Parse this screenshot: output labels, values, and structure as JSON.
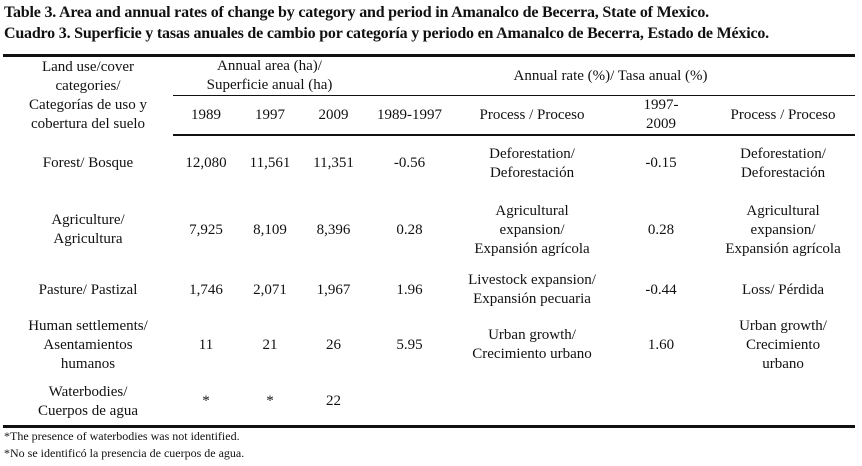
{
  "title_en": "Table 3. Area and annual rates of change by category and period in Amanalco de Becerra, State of Mexico.",
  "title_es": "Cuadro 3. Superficie y tasas anuales de cambio por categoría y periodo en Amanalco de Becerra, Estado de México.",
  "header": {
    "category": [
      "Land use/cover",
      "categories/",
      "Categorías de uso y",
      "cobertura del suelo"
    ],
    "area_group": [
      "Annual area (ha)/",
      "Superficie anual (ha)"
    ],
    "rate_group": "Annual rate (%)/ Tasa anual (%)",
    "columns": [
      "1989",
      "1997",
      "2009",
      "1989-1997",
      "Process / Proceso",
      "1997-",
      "2009",
      "Process / Proceso"
    ]
  },
  "rows": [
    {
      "category": [
        "Forest/ Bosque"
      ],
      "y1989": "12,080",
      "y1997": "11,561",
      "y2009": "11,351",
      "r1": "-0.56",
      "p1": [
        "Deforestation/",
        "Deforestación"
      ],
      "r2": "-0.15",
      "p2": [
        "Deforestation/",
        "Deforestación"
      ]
    },
    {
      "category": [
        "Agriculture/",
        "Agricultura"
      ],
      "y1989": "7,925",
      "y1997": "8,109",
      "y2009": "8,396",
      "r1": "0.28",
      "p1": [
        "Agricultural",
        "expansion/",
        "Expansión agrícola"
      ],
      "r2": "0.28",
      "p2": [
        "Agricultural",
        "expansion/",
        "Expansión agrícola"
      ]
    },
    {
      "category": [
        "Pasture/ Pastizal"
      ],
      "y1989": "1,746",
      "y1997": "2,071",
      "y2009": "1,967",
      "r1": "1.96",
      "p1": [
        "Livestock expansion/",
        "Expansión pecuaria"
      ],
      "r2": "-0.44",
      "p2": [
        "Loss/ Pérdida"
      ]
    },
    {
      "category": [
        "Human settlements/",
        "Asentamientos",
        "humanos"
      ],
      "y1989": "11",
      "y1997": "21",
      "y2009": "26",
      "r1": "5.95",
      "p1": [
        "Urban growth/",
        "Crecimiento urbano"
      ],
      "r2": "1.60",
      "p2": [
        "Urban growth/",
        "Crecimiento",
        "urbano"
      ]
    },
    {
      "category": [
        "Waterbodies/",
        "Cuerpos de agua"
      ],
      "y1989": "*",
      "y1997": "*",
      "y2009": "22",
      "r1": "",
      "p1": [],
      "r2": "",
      "p2": []
    }
  ],
  "footnotes": [
    "*The presence of waterbodies was not identified.",
    "*No se identificó la presencia de cuerpos de agua."
  ]
}
